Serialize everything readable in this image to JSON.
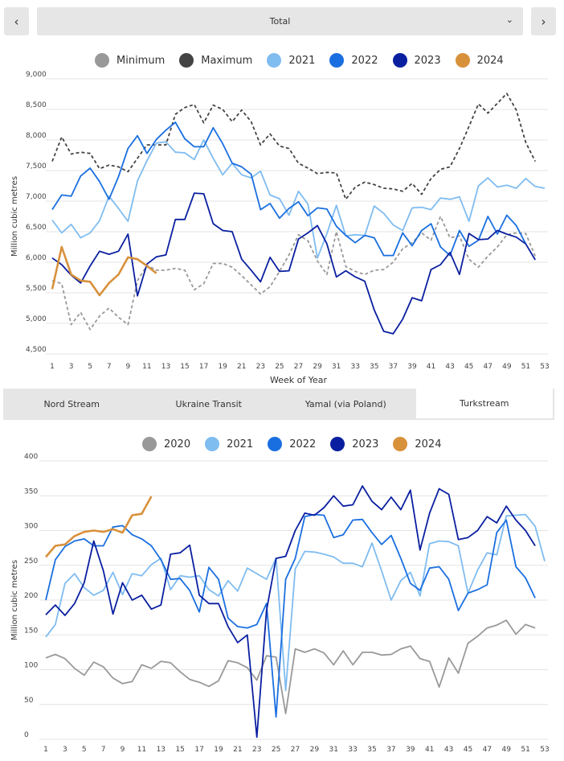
{
  "nav": {
    "prev_icon": "chevron-left-icon",
    "next_icon": "chevron-right-icon",
    "prev_glyph": "‹",
    "next_glyph": "›"
  },
  "selector": {
    "value": "Total",
    "chevron": "⌄"
  },
  "tabs": [
    "Nord Stream",
    "Ukraine Transit",
    "Yamal (via Poland)",
    "Turkstream"
  ],
  "active_tab": 3,
  "chart_data": [
    {
      "type": "line",
      "title": "Total",
      "ylabel": "Million cubic metres",
      "xlabel": "Week of Year",
      "ylim": [
        4500,
        9000
      ],
      "yticks": [
        "4,500",
        "5,000",
        "5,500",
        "6,000",
        "6,500",
        "7,000",
        "7,500",
        "8,000",
        "8,500",
        "9,000"
      ],
      "ytick_values": [
        4500,
        5000,
        5500,
        6000,
        6500,
        7000,
        7500,
        8000,
        8500,
        9000
      ],
      "xlim": [
        1,
        53
      ],
      "xticks": [
        "1",
        "3",
        "5",
        "7",
        "9",
        "11",
        "13",
        "15",
        "17",
        "19",
        "21",
        "23",
        "25",
        "27",
        "29",
        "31",
        "33",
        "35",
        "37",
        "39",
        "41",
        "43",
        "45",
        "47",
        "49",
        "51",
        "53"
      ],
      "legend": [
        "Minimum",
        "Maximum",
        "2021",
        "2022",
        "2023",
        "2024"
      ],
      "series": [
        {
          "name": "Minimum",
          "color": "#999999",
          "dashed": true,
          "values": [
            5700,
            5650,
            4980,
            5180,
            4900,
            5120,
            5250,
            5100,
            4980,
            5700,
            5950,
            5870,
            5870,
            5900,
            5870,
            5550,
            5650,
            5980,
            5980,
            5920,
            5780,
            5630,
            5480,
            5600,
            5850,
            6120,
            6450,
            6350,
            6020,
            5800,
            6500,
            5930,
            5850,
            5800,
            5870,
            5880,
            6000,
            6220,
            6320,
            6480,
            6360,
            6750,
            6400,
            6430,
            6050,
            5920,
            6100,
            6250,
            6450,
            6480,
            6470,
            6100
          ]
        },
        {
          "name": "Maximum",
          "color": "#444444",
          "dashed": true,
          "values": [
            7650,
            8050,
            7770,
            7800,
            7780,
            7530,
            7590,
            7560,
            7480,
            7700,
            7920,
            7920,
            7920,
            8420,
            8530,
            8580,
            8280,
            8570,
            8500,
            8300,
            8490,
            8300,
            7920,
            8100,
            7900,
            7860,
            7620,
            7540,
            7450,
            7470,
            7460,
            7030,
            7230,
            7310,
            7270,
            7210,
            7200,
            7160,
            7290,
            7110,
            7370,
            7520,
            7560,
            7860,
            8220,
            8590,
            8440,
            8600,
            8760,
            8490,
            7960,
            7650
          ]
        },
        {
          "name": "2021",
          "color": "#7fbcf0",
          "dashed": false,
          "values": [
            6690,
            6480,
            6620,
            6400,
            6480,
            6680,
            7080,
            6880,
            6670,
            7330,
            7660,
            7950,
            7970,
            7800,
            7790,
            7680,
            8000,
            7700,
            7430,
            7620,
            7430,
            7380,
            7490,
            7100,
            7040,
            6770,
            7160,
            6950,
            6070,
            6470,
            6930,
            6430,
            6450,
            6440,
            6920,
            6800,
            6610,
            6520,
            6890,
            6900,
            6860,
            7050,
            7030,
            7070,
            6670,
            7250,
            7380,
            7230,
            7260,
            7210,
            7370,
            7240,
            7210
          ]
        },
        {
          "name": "2022",
          "color": "#1a6fe0",
          "dashed": false,
          "values": [
            6860,
            7100,
            7080,
            7410,
            7540,
            7320,
            7030,
            7400,
            7860,
            8070,
            7780,
            8010,
            8160,
            8290,
            8020,
            7890,
            7890,
            8200,
            7940,
            7620,
            7560,
            7440,
            6860,
            6960,
            6720,
            6880,
            6990,
            6760,
            6890,
            6870,
            6590,
            6440,
            6320,
            6440,
            6400,
            6110,
            6110,
            6480,
            6270,
            6520,
            6630,
            6250,
            6110,
            6520,
            6260,
            6360,
            6750,
            6460,
            6770,
            6600,
            6300
          ]
        },
        {
          "name": "2023",
          "color": "#0a1fa0",
          "dashed": false,
          "values": [
            6070,
            5960,
            5790,
            5660,
            5940,
            6180,
            6130,
            6180,
            6460,
            5450,
            5970,
            6090,
            6120,
            6700,
            6700,
            7130,
            7120,
            6630,
            6520,
            6500,
            6050,
            5870,
            5680,
            6080,
            5850,
            5860,
            6380,
            6480,
            6600,
            6300,
            5760,
            5860,
            5760,
            5690,
            5220,
            4870,
            4830,
            5070,
            5420,
            5370,
            5880,
            5960,
            6160,
            5800,
            6470,
            6370,
            6380,
            6520,
            6460,
            6410,
            6300,
            6040
          ]
        },
        {
          "name": "2024",
          "color": "#d8913b",
          "dashed": false,
          "values": [
            5560,
            6250,
            5800,
            5700,
            5680,
            5460,
            5660,
            5800,
            6080,
            6050,
            5940,
            5820
          ]
        }
      ]
    },
    {
      "type": "line",
      "title": "Turkstream",
      "ylabel": "Million cubic metres",
      "xlabel": "",
      "ylim": [
        0,
        400
      ],
      "yticks": [
        "0",
        "50",
        "100",
        "150",
        "200",
        "250",
        "300",
        "350",
        "400"
      ],
      "ytick_values": [
        0,
        50,
        100,
        150,
        200,
        250,
        300,
        350,
        400
      ],
      "xlim": [
        1,
        53
      ],
      "xticks": [
        "1",
        "3",
        "5",
        "7",
        "9",
        "11",
        "13",
        "15",
        "17",
        "19",
        "21",
        "23",
        "25",
        "27",
        "29",
        "31",
        "33",
        "35",
        "37",
        "39",
        "41",
        "43",
        "45",
        "47",
        "49",
        "51",
        "53"
      ],
      "legend": [
        "2020",
        "2021",
        "2022",
        "2023",
        "2024"
      ],
      "series": [
        {
          "name": "2020",
          "color": "#999999",
          "dashed": false,
          "values": [
            117,
            122,
            116,
            102,
            92,
            111,
            104,
            88,
            80,
            83,
            107,
            102,
            112,
            110,
            97,
            86,
            82,
            76,
            84,
            113,
            110,
            103,
            85,
            120,
            118,
            37,
            130,
            125,
            130,
            124,
            107,
            127,
            107,
            125,
            125,
            121,
            122,
            130,
            134,
            116,
            112,
            75,
            117,
            95,
            138,
            148,
            160,
            164,
            171,
            151,
            165,
            160
          ]
        },
        {
          "name": "2021",
          "color": "#7fbcf0",
          "dashed": false,
          "values": [
            147,
            165,
            224,
            238,
            218,
            207,
            214,
            240,
            208,
            238,
            235,
            251,
            260,
            215,
            235,
            233,
            235,
            215,
            206,
            228,
            213,
            246,
            238,
            230,
            260,
            70,
            245,
            270,
            269,
            266,
            262,
            253,
            253,
            248,
            282,
            242,
            200,
            228,
            240,
            206,
            281,
            285,
            284,
            278,
            210,
            243,
            268,
            265,
            321,
            322,
            323,
            306,
            256
          ]
        },
        {
          "name": "2022",
          "color": "#1a6fe0",
          "dashed": false,
          "values": [
            200,
            258,
            277,
            285,
            288,
            278,
            278,
            305,
            307,
            294,
            288,
            278,
            258,
            230,
            231,
            214,
            183,
            247,
            230,
            174,
            162,
            160,
            165,
            195,
            32,
            230,
            260,
            320,
            323,
            322,
            290,
            294,
            315,
            316,
            297,
            280,
            293,
            260,
            224,
            214,
            246,
            248,
            230,
            185,
            210,
            215,
            222,
            297,
            315,
            248,
            232,
            203
          ]
        },
        {
          "name": "2023",
          "color": "#0a1fa0",
          "dashed": false,
          "values": [
            179,
            193,
            178,
            195,
            225,
            285,
            242,
            180,
            225,
            200,
            207,
            187,
            193,
            266,
            268,
            279,
            207,
            195,
            195,
            162,
            139,
            150,
            3,
            185,
            260,
            263,
            300,
            325,
            322,
            333,
            350,
            335,
            337,
            364,
            342,
            330,
            348,
            330,
            358,
            272,
            325,
            360,
            352,
            287,
            290,
            300,
            320,
            311,
            335,
            315,
            300,
            278
          ]
        },
        {
          "name": "2024",
          "color": "#d8913b",
          "dashed": false,
          "values": [
            262,
            278,
            280,
            292,
            298,
            300,
            298,
            302,
            297,
            322,
            324,
            349
          ]
        }
      ]
    }
  ]
}
